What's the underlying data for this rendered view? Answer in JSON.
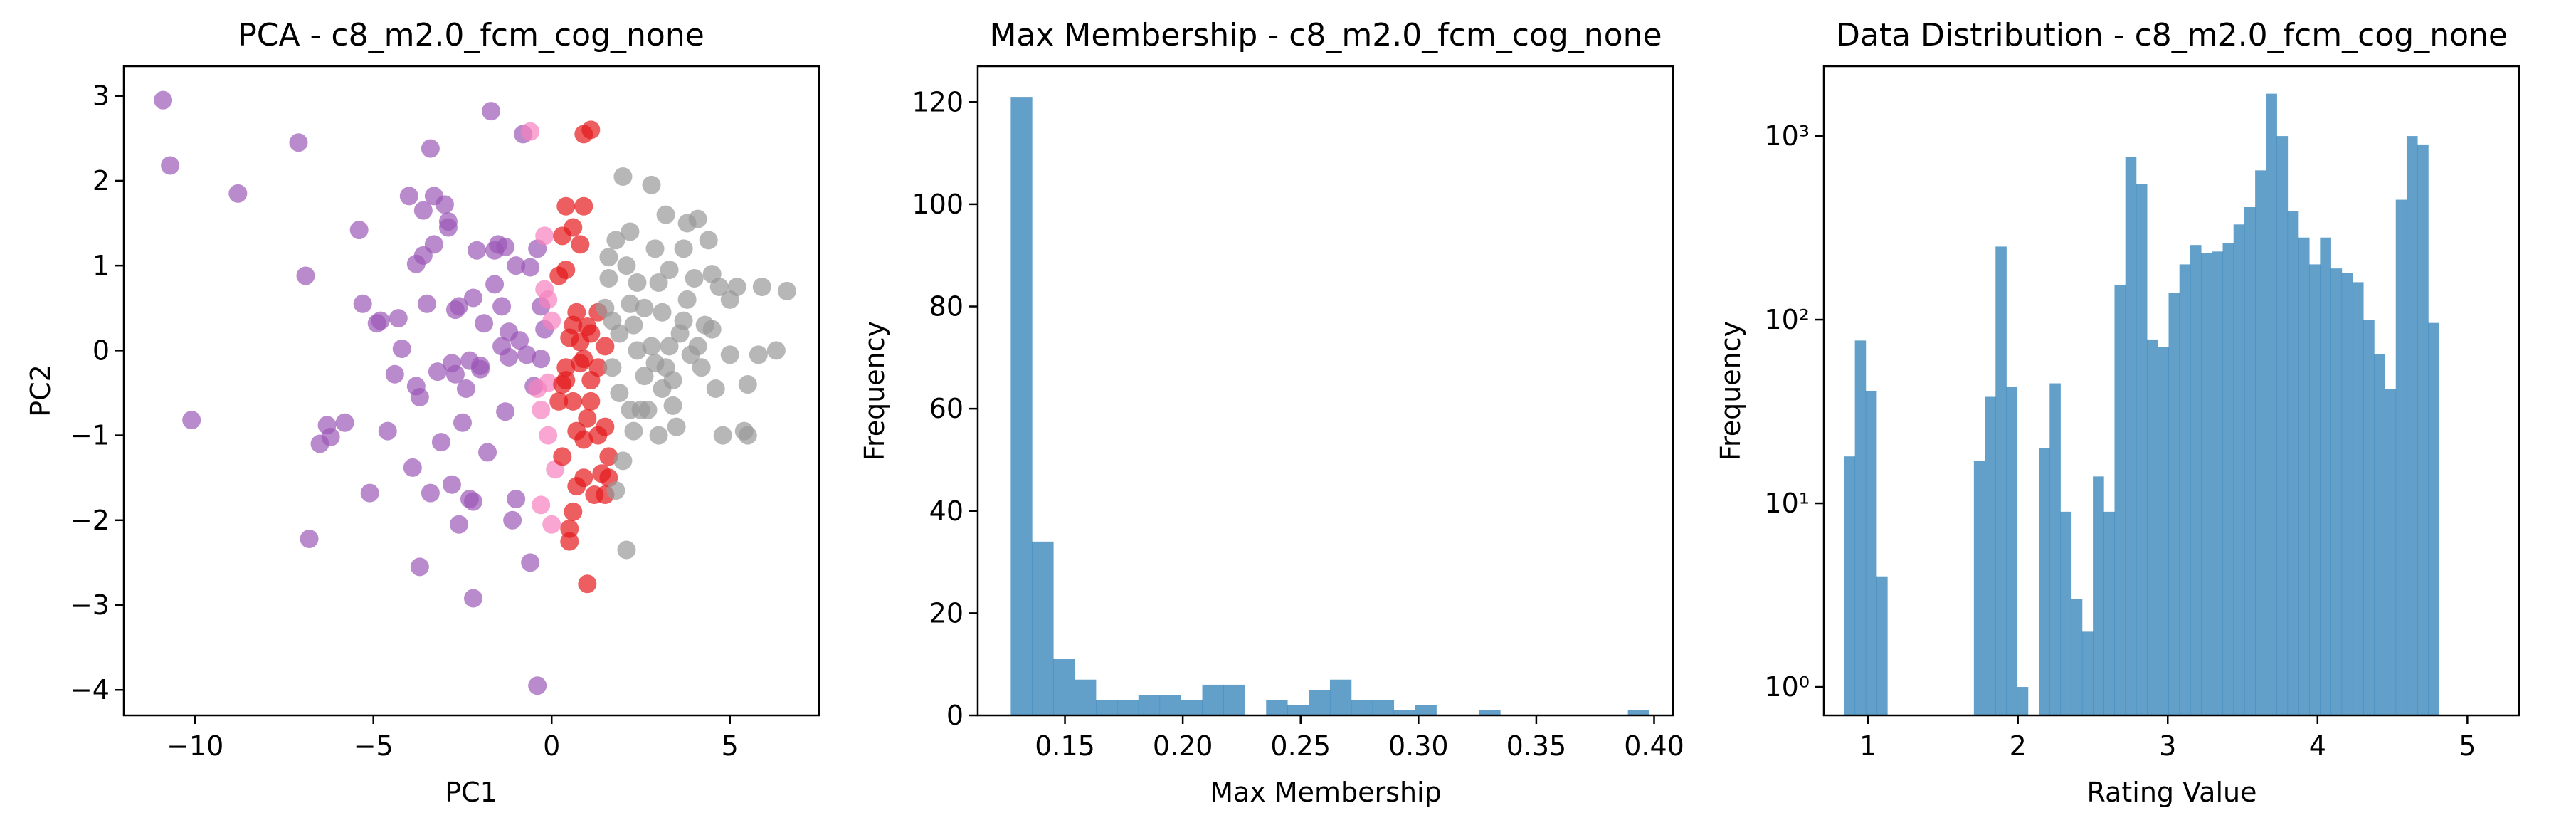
{
  "chart_data": [
    {
      "type": "scatter",
      "title": "PCA - c8_m2.0_fcm_cog_none",
      "xlabel": "PC1",
      "ylabel": "PC2",
      "xlim": [
        -12,
        7.5
      ],
      "ylim": [
        -4.3,
        3.35
      ],
      "xticks": [
        -10,
        -5,
        0,
        5
      ],
      "xtick_labels": [
        "−10",
        "−5",
        "0",
        "5"
      ],
      "yticks": [
        -4,
        -3,
        -2,
        -1,
        0,
        1,
        2,
        3
      ],
      "ytick_labels": [
        "−4",
        "−3",
        "−2",
        "−1",
        "0",
        "1",
        "2",
        "3"
      ],
      "grid": false,
      "legend": "none",
      "colors": {
        "purple": "#9b59b6",
        "red": "#e41a1c",
        "pink": "#f781bf",
        "gray": "#999999"
      },
      "series": [
        {
          "color": "purple",
          "points": [
            [
              -10.9,
              2.95
            ],
            [
              -10.7,
              2.18
            ],
            [
              -10.1,
              -0.82
            ],
            [
              -8.8,
              1.85
            ],
            [
              -7.1,
              2.45
            ],
            [
              -6.9,
              0.88
            ],
            [
              -6.8,
              -2.22
            ],
            [
              -6.5,
              -1.1
            ],
            [
              -6.3,
              -0.88
            ],
            [
              -6.2,
              -1.02
            ],
            [
              -5.8,
              -0.85
            ],
            [
              -5.4,
              1.42
            ],
            [
              -5.3,
              0.55
            ],
            [
              -5.1,
              -1.68
            ],
            [
              -4.9,
              0.32
            ],
            [
              -4.8,
              0.35
            ],
            [
              -4.6,
              -0.95
            ],
            [
              -4.4,
              -0.28
            ],
            [
              -4.3,
              0.38
            ],
            [
              -4.2,
              0.02
            ],
            [
              -4.0,
              1.82
            ],
            [
              -3.9,
              -1.38
            ],
            [
              -3.8,
              1.02
            ],
            [
              -3.8,
              -0.42
            ],
            [
              -3.7,
              -2.55
            ],
            [
              -3.7,
              -0.55
            ],
            [
              -3.6,
              1.65
            ],
            [
              -3.6,
              1.12
            ],
            [
              -3.5,
              0.55
            ],
            [
              -3.4,
              2.38
            ],
            [
              -3.4,
              -1.68
            ],
            [
              -3.3,
              1.82
            ],
            [
              -3.3,
              1.25
            ],
            [
              -3.2,
              -0.25
            ],
            [
              -3.1,
              -1.08
            ],
            [
              -3.0,
              1.72
            ],
            [
              -2.9,
              1.52
            ],
            [
              -2.9,
              1.45
            ],
            [
              -2.8,
              -0.15
            ],
            [
              -2.8,
              -1.58
            ],
            [
              -2.7,
              -0.28
            ],
            [
              -2.7,
              0.48
            ],
            [
              -2.6,
              0.52
            ],
            [
              -2.6,
              -2.05
            ],
            [
              -2.5,
              -0.85
            ],
            [
              -2.4,
              -0.45
            ],
            [
              -2.3,
              -0.12
            ],
            [
              -2.3,
              -1.75
            ],
            [
              -2.2,
              -1.78
            ],
            [
              -2.2,
              0.62
            ],
            [
              -2.2,
              -2.92
            ],
            [
              -2.1,
              1.18
            ],
            [
              -2.0,
              -0.22
            ],
            [
              -2.0,
              -0.18
            ],
            [
              -1.9,
              0.32
            ],
            [
              -1.8,
              -1.2
            ],
            [
              -1.7,
              2.82
            ],
            [
              -1.6,
              0.78
            ],
            [
              -1.6,
              1.18
            ],
            [
              -1.5,
              1.25
            ],
            [
              -1.4,
              0.52
            ],
            [
              -1.4,
              0.05
            ],
            [
              -1.3,
              1.22
            ],
            [
              -1.3,
              -0.72
            ],
            [
              -1.2,
              0.22
            ],
            [
              -1.1,
              -2.0
            ],
            [
              -1.0,
              1.0
            ],
            [
              -1.0,
              -1.75
            ],
            [
              -0.9,
              0.12
            ],
            [
              -0.8,
              2.55
            ],
            [
              -0.7,
              -0.05
            ],
            [
              -0.6,
              0.98
            ],
            [
              -0.6,
              -2.5
            ],
            [
              -0.5,
              -0.42
            ],
            [
              -0.4,
              -3.95
            ],
            [
              -0.4,
              1.2
            ],
            [
              -0.3,
              0.52
            ],
            [
              -0.2,
              0.25
            ],
            [
              -0.3,
              -0.1
            ],
            [
              -1.2,
              -0.08
            ]
          ]
        },
        {
          "color": "pink",
          "points": [
            [
              -0.6,
              2.58
            ],
            [
              -0.3,
              -1.82
            ],
            [
              -0.1,
              -0.38
            ],
            [
              -0.1,
              -1.0
            ],
            [
              0.1,
              -1.4
            ],
            [
              -0.2,
              1.35
            ],
            [
              -0.1,
              0.6
            ],
            [
              0.0,
              0.35
            ],
            [
              -0.3,
              -0.7
            ],
            [
              0.0,
              -2.05
            ],
            [
              -0.2,
              0.72
            ],
            [
              -0.4,
              -0.45
            ]
          ]
        },
        {
          "color": "red",
          "points": [
            [
              0.9,
              2.55
            ],
            [
              1.1,
              2.6
            ],
            [
              0.4,
              1.7
            ],
            [
              0.9,
              1.7
            ],
            [
              0.3,
              1.35
            ],
            [
              0.6,
              1.45
            ],
            [
              0.8,
              1.25
            ],
            [
              0.2,
              0.88
            ],
            [
              0.4,
              0.95
            ],
            [
              1.3,
              0.45
            ],
            [
              1.0,
              0.28
            ],
            [
              0.8,
              0.1
            ],
            [
              0.5,
              0.15
            ],
            [
              0.6,
              0.3
            ],
            [
              1.5,
              0.05
            ],
            [
              1.1,
              0.2
            ],
            [
              0.4,
              -0.2
            ],
            [
              0.9,
              -0.1
            ],
            [
              1.3,
              -0.2
            ],
            [
              0.3,
              -0.4
            ],
            [
              0.6,
              -0.6
            ],
            [
              1.1,
              -0.6
            ],
            [
              1.0,
              -0.8
            ],
            [
              0.7,
              -0.95
            ],
            [
              1.3,
              -1.0
            ],
            [
              1.5,
              -0.9
            ],
            [
              0.9,
              -1.05
            ],
            [
              0.3,
              -1.25
            ],
            [
              0.9,
              -1.5
            ],
            [
              1.4,
              -1.45
            ],
            [
              0.7,
              -1.6
            ],
            [
              1.2,
              -1.7
            ],
            [
              0.6,
              -1.9
            ],
            [
              0.5,
              -2.1
            ],
            [
              1.5,
              -1.7
            ],
            [
              0.5,
              -2.25
            ],
            [
              1.0,
              -2.75
            ],
            [
              0.4,
              -0.35
            ],
            [
              0.2,
              -0.6
            ],
            [
              1.6,
              -1.25
            ],
            [
              0.8,
              -0.15
            ],
            [
              1.1,
              -0.35
            ],
            [
              1.6,
              -1.5
            ],
            [
              0.7,
              0.45
            ]
          ]
        },
        {
          "color": "gray",
          "points": [
            [
              1.6,
              1.1
            ],
            [
              1.6,
              0.85
            ],
            [
              1.8,
              1.3
            ],
            [
              2.0,
              2.05
            ],
            [
              1.5,
              0.5
            ],
            [
              1.7,
              0.35
            ],
            [
              1.9,
              0.2
            ],
            [
              2.1,
              1.0
            ],
            [
              2.2,
              1.4
            ],
            [
              2.3,
              0.3
            ],
            [
              2.4,
              0.0
            ],
            [
              2.2,
              -0.7
            ],
            [
              2.3,
              -0.95
            ],
            [
              2.0,
              -1.3
            ],
            [
              2.5,
              -0.7
            ],
            [
              2.6,
              0.5
            ],
            [
              2.8,
              1.95
            ],
            [
              2.9,
              1.2
            ],
            [
              3.0,
              0.8
            ],
            [
              3.1,
              0.45
            ],
            [
              3.2,
              -0.2
            ],
            [
              3.2,
              1.6
            ],
            [
              3.3,
              0.95
            ],
            [
              3.3,
              0.05
            ],
            [
              3.4,
              -0.35
            ],
            [
              3.4,
              -0.65
            ],
            [
              3.5,
              -0.9
            ],
            [
              3.7,
              0.35
            ],
            [
              3.7,
              1.2
            ],
            [
              3.8,
              1.5
            ],
            [
              3.8,
              0.6
            ],
            [
              4.0,
              0.85
            ],
            [
              4.1,
              1.55
            ],
            [
              4.1,
              0.05
            ],
            [
              4.3,
              0.3
            ],
            [
              4.4,
              1.3
            ],
            [
              4.5,
              0.9
            ],
            [
              4.6,
              -0.45
            ],
            [
              4.7,
              0.75
            ],
            [
              4.8,
              -1.0
            ],
            [
              5.0,
              0.6
            ],
            [
              5.0,
              -0.05
            ],
            [
              5.2,
              0.75
            ],
            [
              5.4,
              -0.95
            ],
            [
              5.5,
              -1.0
            ],
            [
              5.5,
              -0.4
            ],
            [
              5.8,
              -0.05
            ],
            [
              5.9,
              0.75
            ],
            [
              6.3,
              0.0
            ],
            [
              6.6,
              0.7
            ],
            [
              2.7,
              -0.7
            ],
            [
              3.0,
              -1.0
            ],
            [
              2.4,
              0.8
            ],
            [
              2.6,
              -0.3
            ],
            [
              3.6,
              0.2
            ],
            [
              4.2,
              -0.2
            ],
            [
              2.8,
              0.05
            ],
            [
              3.9,
              -0.05
            ],
            [
              1.9,
              -0.5
            ],
            [
              2.1,
              -2.35
            ],
            [
              1.8,
              -1.65
            ],
            [
              2.2,
              0.55
            ],
            [
              3.1,
              -0.45
            ],
            [
              4.5,
              0.25
            ],
            [
              2.9,
              -0.15
            ],
            [
              1.7,
              -0.2
            ]
          ]
        }
      ]
    },
    {
      "type": "bar",
      "title": "Max Membership - c8_m2.0_fcm_cog_none",
      "xlabel": "Max Membership",
      "ylabel": "Frequency",
      "xlim": [
        0.113,
        0.408
      ],
      "ylim": [
        0,
        127
      ],
      "xticks": [
        0.15,
        0.2,
        0.25,
        0.3,
        0.35,
        0.4
      ],
      "xtick_labels": [
        "0.15",
        "0.20",
        "0.25",
        "0.30",
        "0.35",
        "0.40"
      ],
      "yticks": [
        0,
        20,
        40,
        60,
        80,
        100,
        120
      ],
      "ytick_labels": [
        "0",
        "20",
        "40",
        "60",
        "80",
        "100",
        "120"
      ],
      "bin_start": 0.127,
      "bin_width": 0.00903,
      "values": [
        121,
        34,
        11,
        7,
        3,
        3,
        4,
        4,
        3,
        6,
        6,
        0,
        3,
        2,
        5,
        7,
        3,
        3,
        1,
        2,
        0,
        0,
        1,
        0,
        0,
        0,
        0,
        0,
        0,
        1
      ],
      "color": "#1f77b4",
      "grid": false,
      "legend": "none"
    },
    {
      "type": "bar",
      "title": "Data Distribution - c8_m2.0_fcm_cog_none",
      "xlabel": "Rating Value",
      "ylabel": "Frequency",
      "yscale": "log",
      "xlim": [
        0.705,
        5.345
      ],
      "ylim": [
        0.7,
        2400
      ],
      "xticks": [
        1,
        2,
        3,
        4,
        5
      ],
      "xtick_labels": [
        "1",
        "2",
        "3",
        "4",
        "5"
      ],
      "yticks": [
        1,
        10,
        100,
        1000
      ],
      "ytick_labels": [
        "10⁰",
        "10¹",
        "10²",
        "10³"
      ],
      "bin_start": 0.84,
      "bin_width": 0.0722,
      "values": [
        18,
        77,
        41,
        4,
        0,
        0,
        0,
        0,
        0,
        0,
        0,
        0,
        17,
        38,
        250,
        43,
        1,
        0,
        20,
        45,
        9,
        3,
        2,
        14,
        9,
        155,
        770,
        550,
        78,
        71,
        140,
        200,
        255,
        230,
        235,
        260,
        330,
        410,
        650,
        1700,
        1000,
        390,
        280,
        200,
        280,
        190,
        180,
        160,
        100,
        65,
        42,
        450,
        1000,
        900,
        96
      ],
      "color": "#1f77b4",
      "grid": false,
      "legend": "none"
    }
  ]
}
